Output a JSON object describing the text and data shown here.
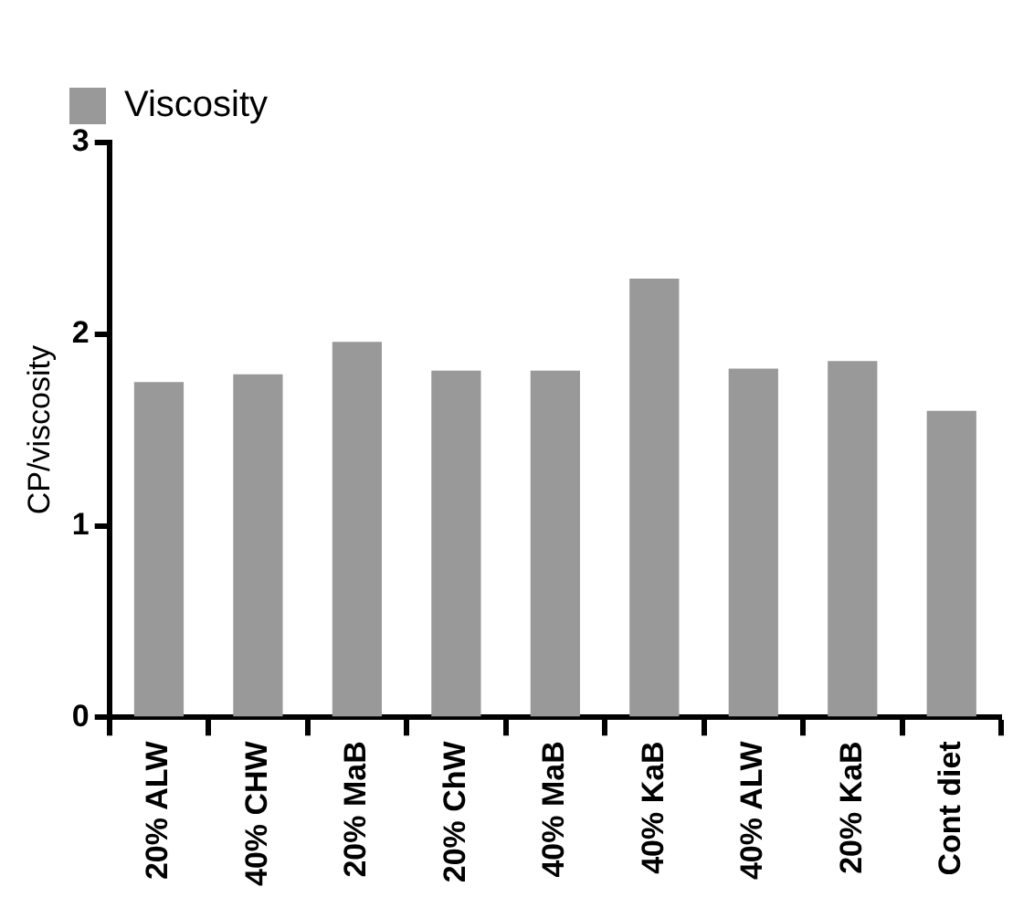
{
  "chart_data": {
    "type": "bar",
    "ylabel": "CP/viscosity",
    "categories": [
      "20% ALW",
      "40% CHW",
      "20% MaB",
      "20% ChW",
      "40% MaB",
      "40% KaB",
      "40% ALW",
      "20% KaB",
      "Cont diet"
    ],
    "series": [
      {
        "name": "Viscosity",
        "color": "#999999",
        "values": [
          1.75,
          1.79,
          1.96,
          1.81,
          1.81,
          2.29,
          1.82,
          1.86,
          1.6
        ]
      }
    ],
    "ylim": [
      0,
      3
    ],
    "yticks": [
      0,
      1,
      2,
      3
    ],
    "grid": false,
    "legend": "top left"
  }
}
